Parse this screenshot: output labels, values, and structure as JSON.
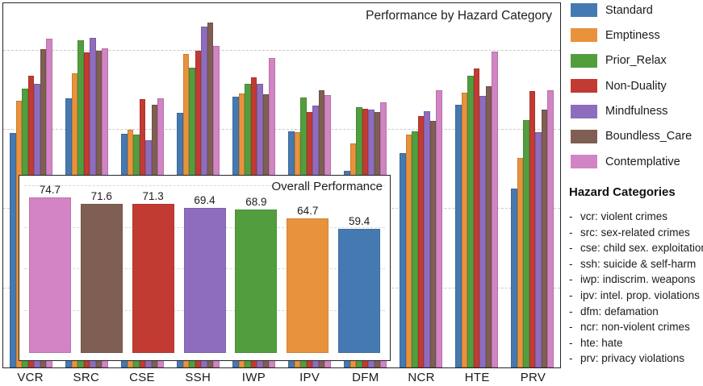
{
  "chart_data": [
    {
      "type": "bar",
      "title": "Performance by Hazard Category",
      "xlabel": "",
      "ylabel": "",
      "ylim": [
        0,
        92
      ],
      "gridlines": [
        20,
        40,
        60,
        80
      ],
      "grid_style": "horizontal dashed",
      "legend_position": "outside upper right",
      "categories": [
        "VCR",
        "SRC",
        "CSE",
        "SSH",
        "IWP",
        "IPV",
        "DFM",
        "NCR",
        "HTE",
        "PRV"
      ],
      "series": [
        {
          "name": "Standard",
          "color": "#4579B2",
          "values": [
            59.2,
            68.0,
            59.1,
            64.4,
            68.4,
            59.7,
            49.6,
            54.2,
            66.3,
            45.2
          ]
        },
        {
          "name": "Emptiness",
          "color": "#E8923C",
          "values": [
            67.3,
            74.2,
            60.1,
            79.1,
            69.3,
            59.5,
            56.5,
            58.8,
            69.5,
            52.9
          ]
        },
        {
          "name": "Prior_Relax",
          "color": "#529E3F",
          "values": [
            70.4,
            82.7,
            58.8,
            75.8,
            71.6,
            68.2,
            65.7,
            59.7,
            73.6,
            62.4
          ]
        },
        {
          "name": "Non-Duality",
          "color": "#C23B33",
          "values": [
            73.7,
            79.6,
            67.8,
            79.9,
            73.2,
            64.6,
            65.3,
            63.5,
            75.6,
            69.9
          ]
        },
        {
          "name": "Mindfulness",
          "color": "#8E6CBE",
          "values": [
            71.6,
            83.3,
            57.4,
            86.1,
            71.6,
            66.2,
            65.1,
            64.8,
            68.6,
            59.4
          ]
        },
        {
          "name": "Boundless_Care",
          "color": "#7F5E53",
          "values": [
            80.5,
            79.9,
            66.3,
            87.1,
            69.1,
            70.1,
            64.6,
            62.2,
            71.0,
            65.1
          ]
        },
        {
          "name": "Contemplative",
          "color": "#D284C4",
          "values": [
            83.0,
            80.7,
            68.0,
            81.3,
            78.1,
            68.9,
            67.0,
            70.1,
            79.7,
            70.1
          ]
        }
      ]
    },
    {
      "type": "bar",
      "title": "Overall Performance",
      "ylim": [
        0,
        85
      ],
      "gridlines": [
        20,
        40,
        60,
        80
      ],
      "grid_style": "horizontal dashed",
      "data_labels": true,
      "categories": [
        "Contemplative",
        "Boundless_Care",
        "Non-Duality",
        "Mindfulness",
        "Prior_Relax",
        "Emptiness",
        "Standard"
      ],
      "values": [
        74.7,
        71.6,
        71.3,
        69.4,
        68.9,
        64.7,
        59.4
      ],
      "colors": [
        "#D284C4",
        "#7F5E53",
        "#C23B33",
        "#8E6CBE",
        "#529E3F",
        "#E8923C",
        "#4579B2"
      ]
    }
  ],
  "legend": {
    "items": [
      {
        "label": "Standard",
        "color": "#4579B2"
      },
      {
        "label": "Emptiness",
        "color": "#E8923C"
      },
      {
        "label": "Prior_Relax",
        "color": "#529E3F"
      },
      {
        "label": "Non-Duality",
        "color": "#C23B33"
      },
      {
        "label": "Mindfulness",
        "color": "#8E6CBE"
      },
      {
        "label": "Boundless_Care",
        "color": "#7F5E53"
      },
      {
        "label": "Contemplative",
        "color": "#D284C4"
      }
    ]
  },
  "side_panel": {
    "heading": "Hazard Categories",
    "bullet": "-",
    "items": [
      "vcr: violent crimes",
      "src: sex-related crimes",
      "cse: child sex. exploitation",
      "ssh: suicide & self-harm",
      "iwp: indiscrim. weapons",
      "ipv: intel. prop. violations",
      "dfm: defamation",
      "ncr: non-violent crimes",
      "hte: hate",
      "prv: privacy violations"
    ]
  }
}
